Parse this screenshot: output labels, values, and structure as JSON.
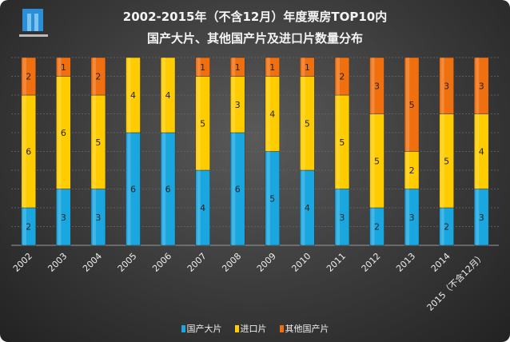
{
  "chart_data": {
    "type": "bar",
    "stacked": true,
    "title": "2002-2015年（不含12月）年度票房TOP10内",
    "subtitle": "国产大片、其他国产片及进口片数量分布",
    "categories": [
      "2002",
      "2003",
      "2004",
      "2005",
      "2006",
      "2007",
      "2008",
      "2009",
      "2010",
      "2011",
      "2012",
      "2013",
      "2014",
      "2015（不含12月）"
    ],
    "series": [
      {
        "name": "国产大片",
        "color": "#1aa7e0",
        "values": [
          2,
          3,
          3,
          6,
          6,
          4,
          6,
          5,
          4,
          3,
          2,
          3,
          2,
          3
        ]
      },
      {
        "name": "进口片",
        "color": "#ffcc00",
        "values": [
          6,
          6,
          5,
          4,
          4,
          5,
          3,
          4,
          5,
          5,
          5,
          2,
          5,
          4
        ]
      },
      {
        "name": "其他国产片",
        "color": "#f07010",
        "values": [
          2,
          1,
          2,
          0,
          0,
          1,
          1,
          1,
          1,
          2,
          3,
          5,
          3,
          3
        ]
      }
    ],
    "ylim": [
      0,
      10
    ],
    "grid": true,
    "legend": "bottom"
  }
}
